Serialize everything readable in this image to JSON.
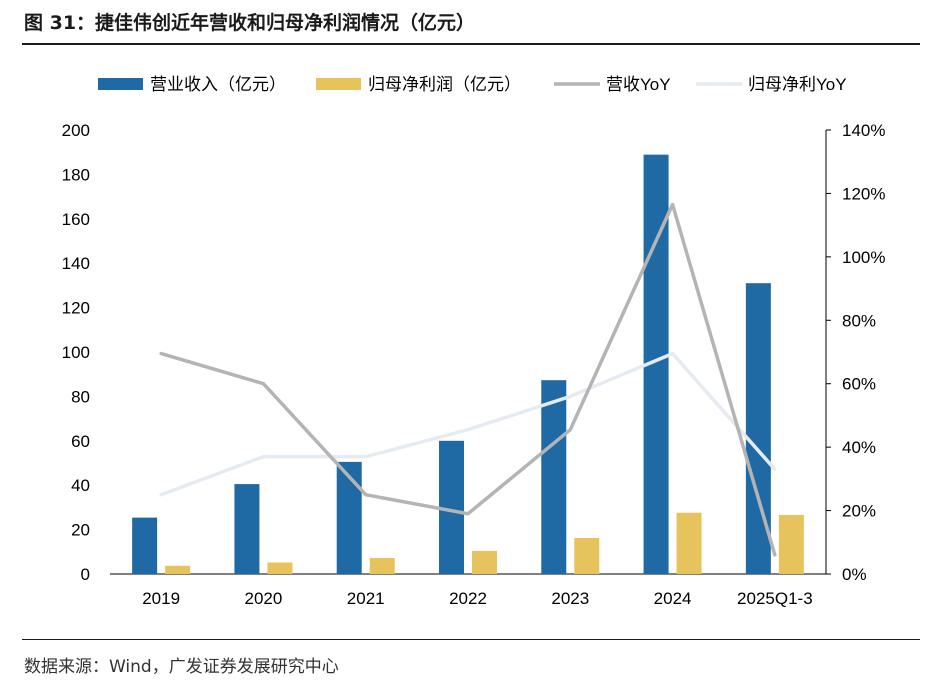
{
  "figure": {
    "title": "图 31：捷佳伟创近年营收和归母净利润情况（亿元）",
    "source": "数据来源：Wind，广发证券发展研究中心"
  },
  "colors": {
    "revenue": "#1f6aa5",
    "profit": "#e6c35c",
    "revenue_yoy": "#b4b4b4",
    "profit_yoy": "#e6ebf2"
  },
  "chart_data": {
    "type": "bar",
    "title": "捷佳伟创近年营收和归母净利润情况（亿元）",
    "categories": [
      "2019",
      "2020",
      "2021",
      "2022",
      "2023",
      "2024",
      "2025Q1-3"
    ],
    "series": [
      {
        "name": "营业收入（亿元）",
        "kind": "bar",
        "axis": "left",
        "color_key": "revenue",
        "values": [
          25.4,
          40.5,
          50.5,
          60.0,
          87.3,
          188.9,
          131.0
        ]
      },
      {
        "name": "归母净利润（亿元）",
        "kind": "bar",
        "axis": "left",
        "color_key": "profit",
        "values": [
          3.7,
          5.2,
          7.2,
          10.4,
          16.2,
          27.6,
          26.6
        ]
      },
      {
        "name": "营收YoY",
        "kind": "line",
        "axis": "right",
        "color_key": "revenue_yoy",
        "values": [
          69.5,
          60.0,
          25.0,
          19.0,
          45.5,
          116.5,
          6.0
        ]
      },
      {
        "name": "归母净利YoY",
        "kind": "line",
        "axis": "right",
        "color_key": "profit_yoy",
        "values": [
          25.0,
          37.0,
          37.0,
          45.5,
          56.0,
          69.5,
          33.0
        ]
      }
    ],
    "left_axis": {
      "ylim": [
        0,
        200
      ],
      "ticks": [
        "0",
        "20",
        "40",
        "60",
        "80",
        "100",
        "120",
        "140",
        "160",
        "180",
        "200"
      ]
    },
    "right_axis": {
      "ylim": [
        0,
        140
      ],
      "ticks": [
        "0%",
        "20%",
        "40%",
        "60%",
        "80%",
        "100%",
        "120%",
        "140%"
      ]
    },
    "xlabel": "",
    "ylabel": "",
    "grid": false,
    "legend_position": "top"
  }
}
